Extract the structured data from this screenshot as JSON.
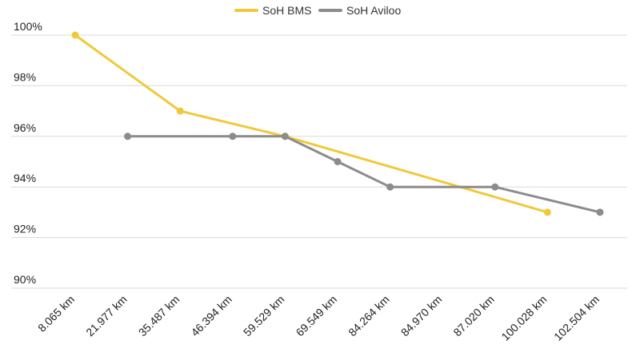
{
  "chart_data": {
    "type": "line",
    "title": "",
    "xlabel": "",
    "ylabel": "",
    "categories": [
      "8.065 km",
      "21.977 km",
      "35.487 km",
      "46.394 km",
      "59.529 km",
      "69.549 km",
      "84.264 km",
      "84.970 km",
      "87.020 km",
      "100.028 km",
      "102.504 km"
    ],
    "y_ticks": [
      "90%",
      "92%",
      "94%",
      "96%",
      "98%",
      "100%"
    ],
    "ylim": [
      90,
      100
    ],
    "grid": true,
    "legend_position": "top-center",
    "series": [
      {
        "name": "SoH BMS",
        "color": "#f0c93a",
        "points": [
          {
            "category": "8.065 km",
            "value": 100
          },
          {
            "category": "35.487 km",
            "value": 97
          },
          {
            "category": "59.529 km",
            "value": 96
          },
          {
            "category": "100.028 km",
            "value": 93
          }
        ]
      },
      {
        "name": "SoH Aviloo",
        "color": "#8c8c8c",
        "points": [
          {
            "category": "21.977 km",
            "value": 96
          },
          {
            "category": "46.394 km",
            "value": 96
          },
          {
            "category": "59.529 km",
            "value": 96
          },
          {
            "category": "69.549 km",
            "value": 95
          },
          {
            "category": "84.264 km",
            "value": 94
          },
          {
            "category": "87.020 km",
            "value": 94
          },
          {
            "category": "102.504 km",
            "value": 93
          }
        ]
      }
    ]
  }
}
